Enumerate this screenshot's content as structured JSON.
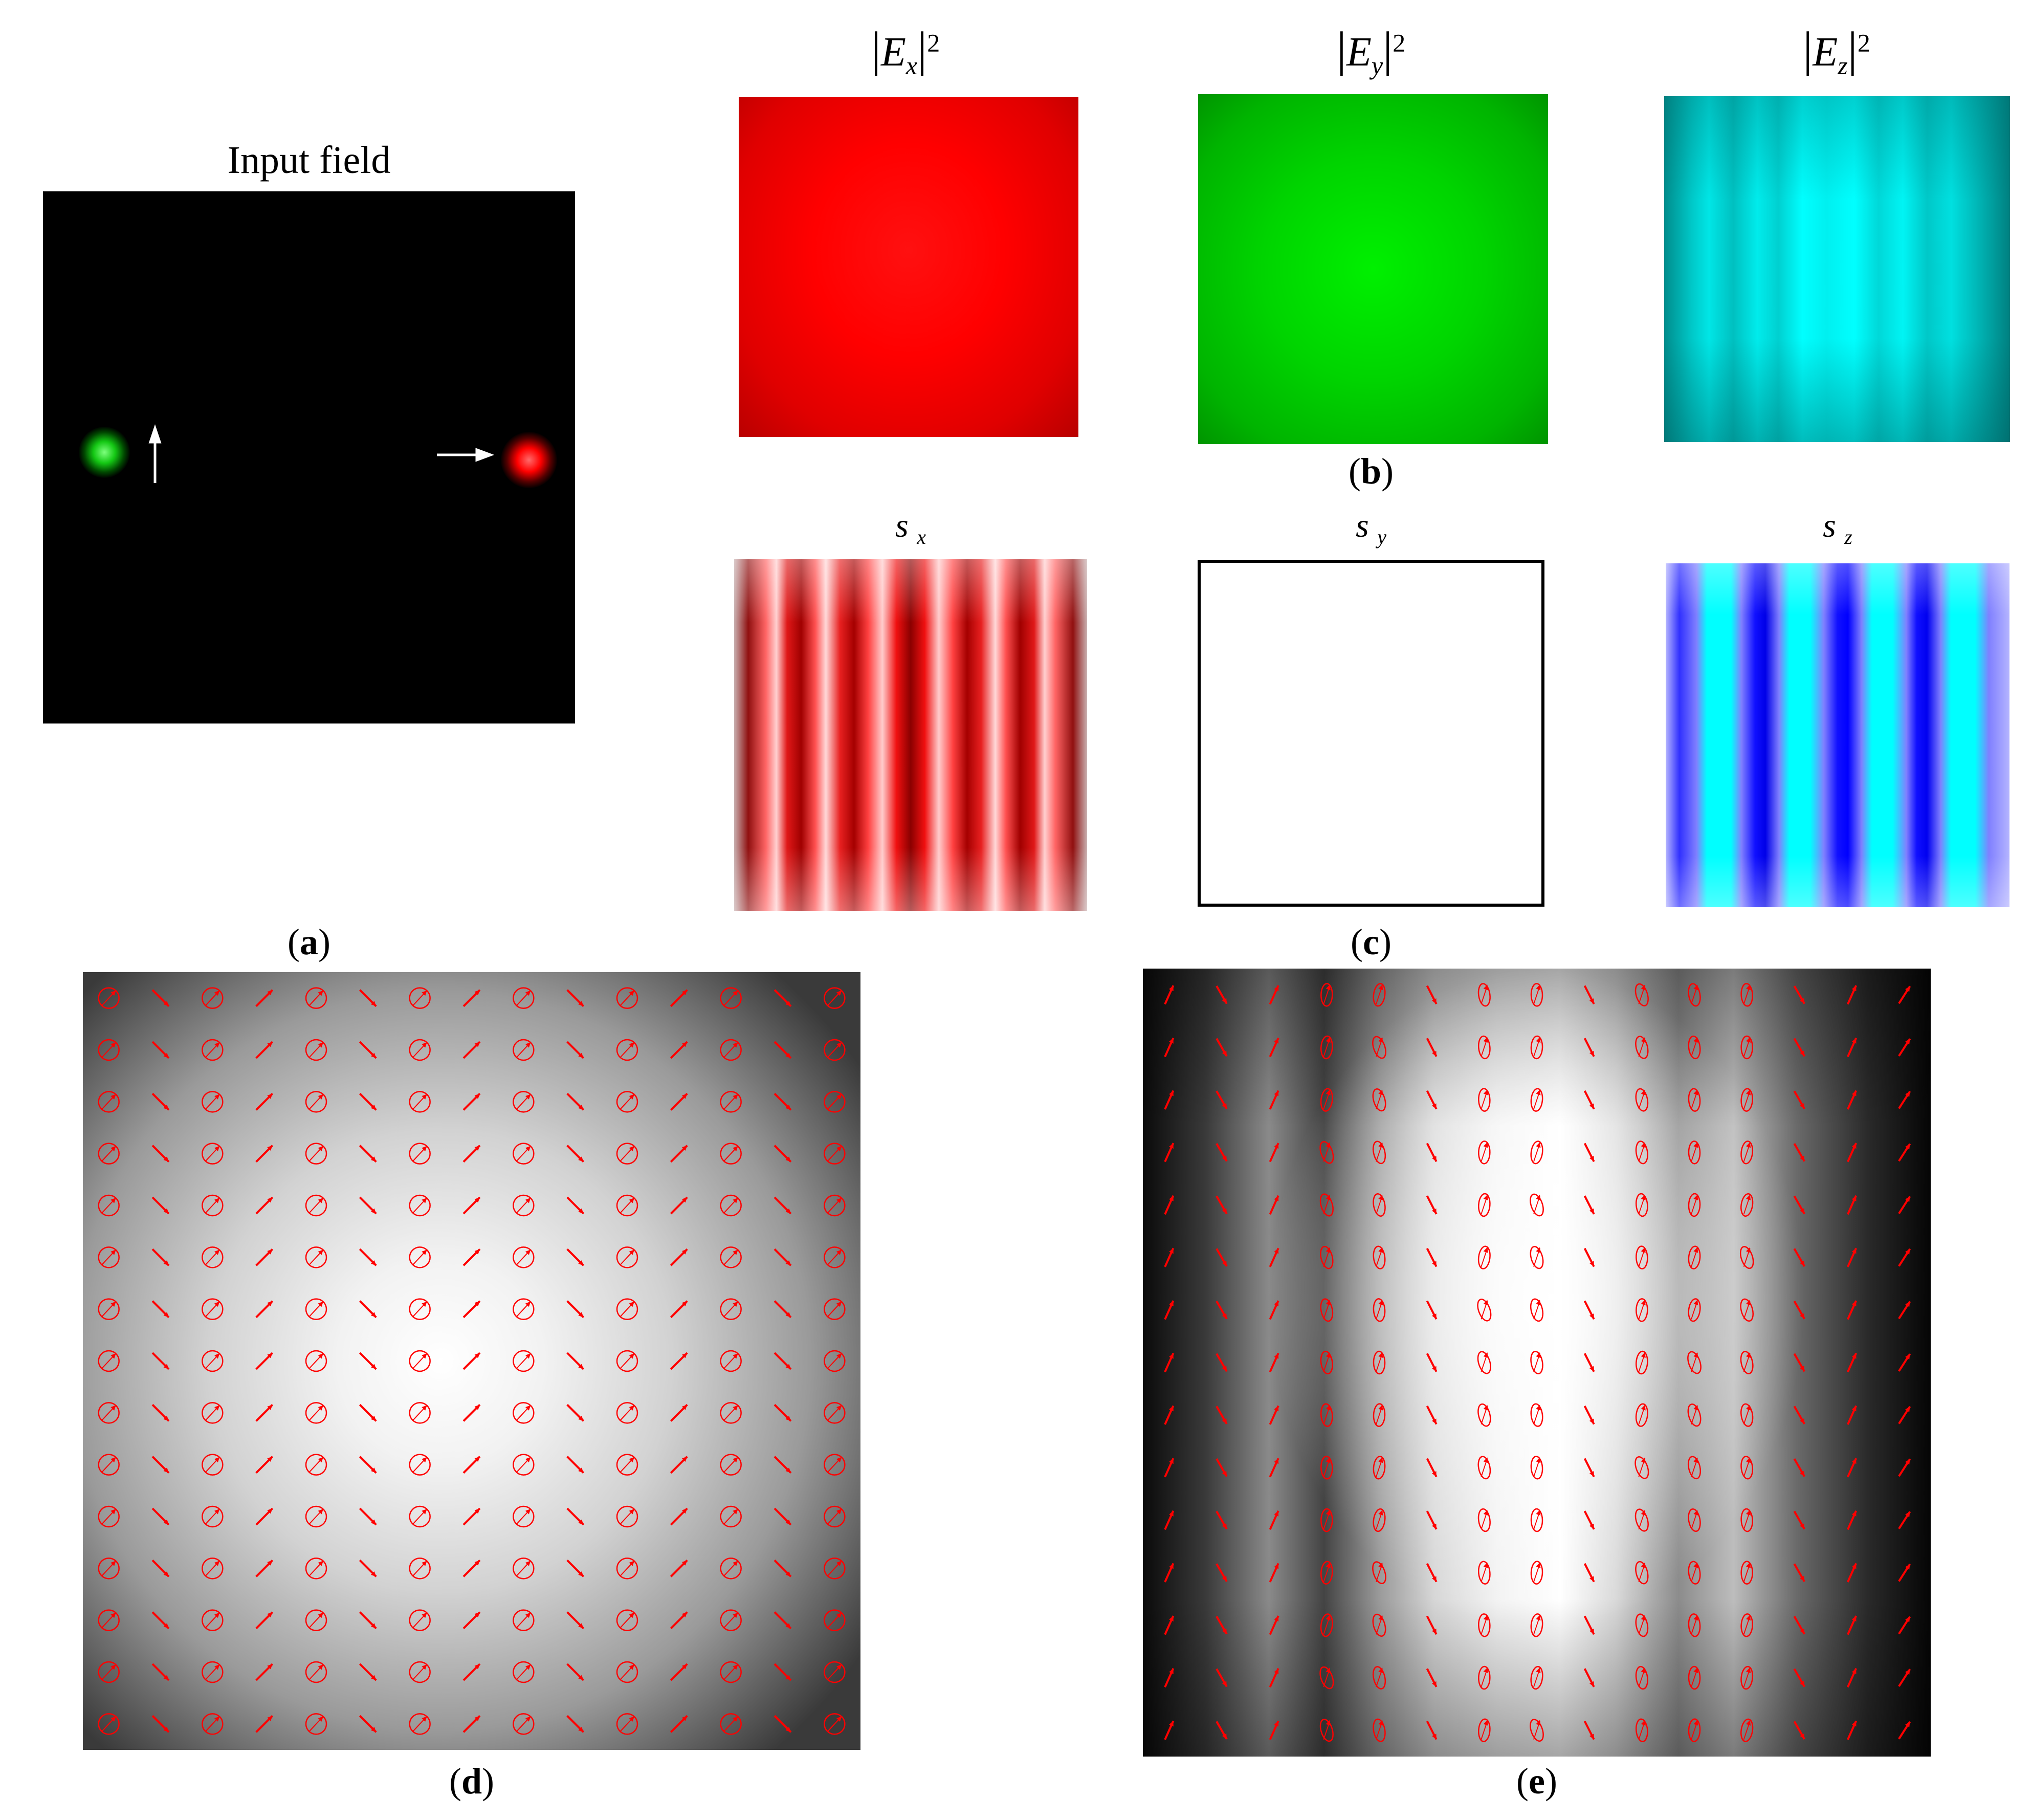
{
  "figure": {
    "panel_a": {
      "title": "Input field",
      "caption_letter": "a"
    },
    "panel_b": {
      "caption_letter": "b",
      "ex_symbol": "E",
      "ex_sub": "x",
      "ex_power": "2",
      "ey_symbol": "E",
      "ey_sub": "y",
      "ey_power": "2",
      "ez_symbol": "E",
      "ez_sub": "z",
      "ez_power": "2"
    },
    "panel_c": {
      "caption_letter": "c",
      "sx_symbol": "s",
      "sx_sub": "x",
      "sy_symbol": "s",
      "sy_sub": "y",
      "sz_symbol": "s",
      "sz_sub": "z"
    },
    "panel_d": {
      "caption_letter": "d"
    },
    "panel_e": {
      "caption_letter": "e"
    }
  },
  "colors": {
    "ellipse": "#ff0000",
    "arrow": "#ffffff",
    "spot_y_polarized": "#00c800",
    "spot_x_polarized": "#ff0000"
  },
  "icons": [
    "vertical-arrow-icon",
    "horizontal-arrow-icon",
    "polarization-ellipse-icon"
  ],
  "polarization_grid": {
    "rows": 15,
    "cols": 15
  }
}
